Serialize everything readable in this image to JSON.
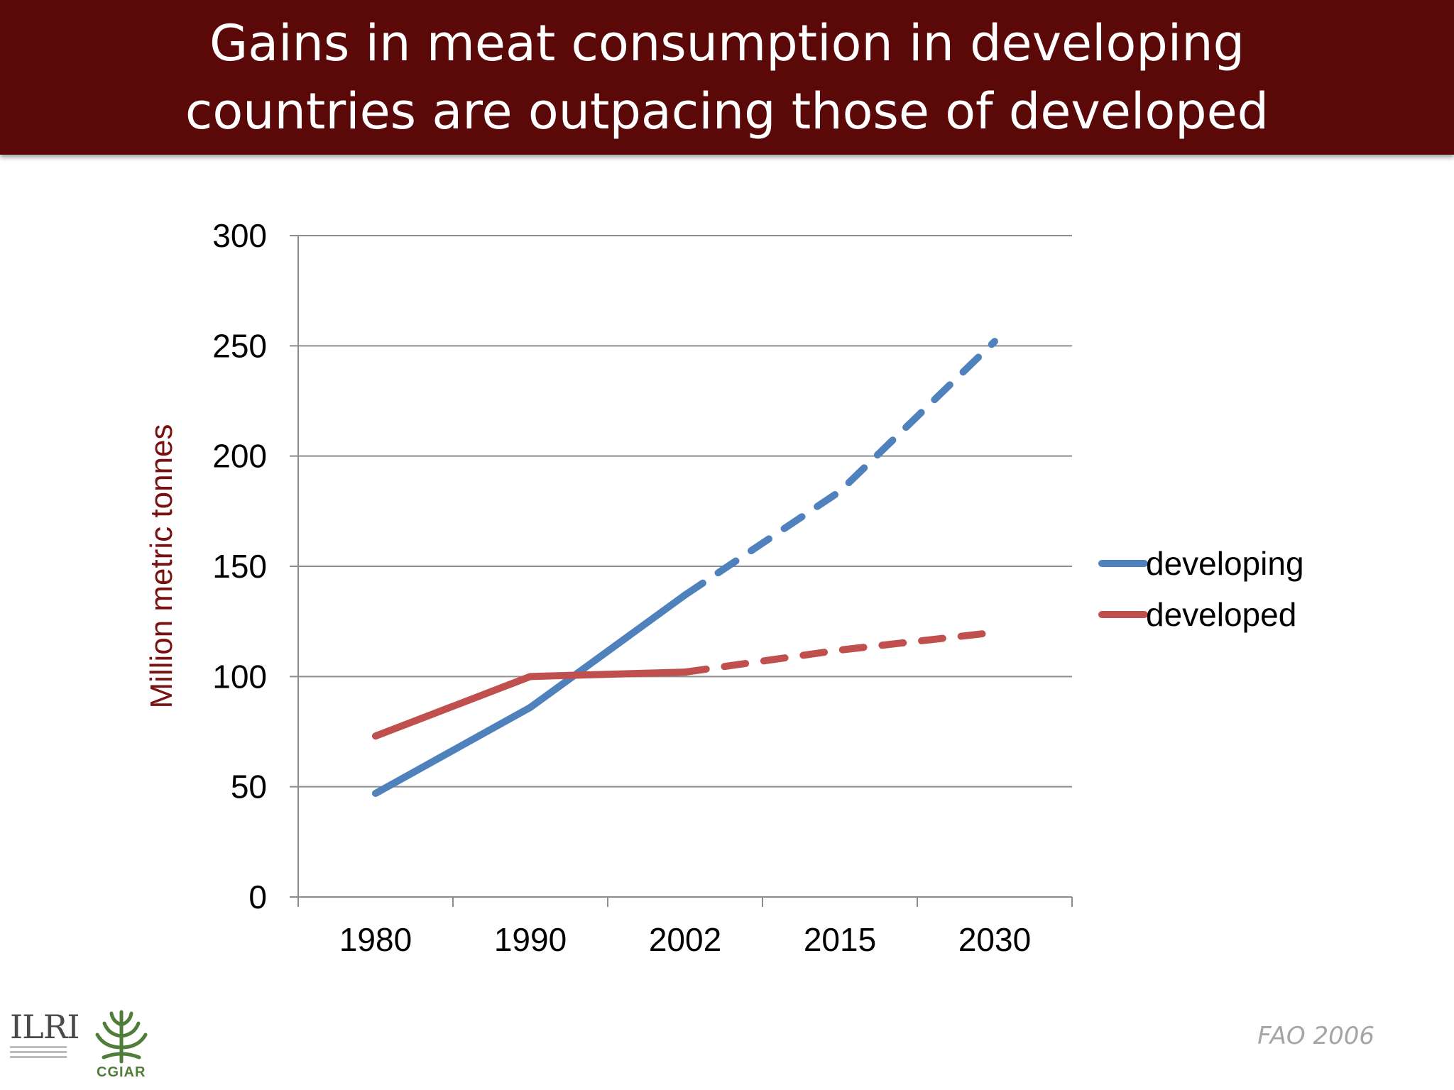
{
  "slide": {
    "title_lines": [
      "Gains in meat consumption in developing",
      "countries are outpacing those of developed"
    ],
    "source": "FAO 2006",
    "logos": {
      "ilri": "ILRI",
      "cgiar": "CGIAR"
    }
  },
  "colors": {
    "title_bg": "#5a0808",
    "developing": "#4f81bd",
    "developed": "#c0504d",
    "ylabel": "#7a1010"
  },
  "chart_data": {
    "type": "line",
    "title": "",
    "xlabel": "",
    "ylabel": "Million metric tonnes",
    "categories": [
      "1980",
      "1990",
      "2002",
      "2015",
      "2030"
    ],
    "ylim": [
      0,
      300
    ],
    "yticks": [
      0,
      50,
      100,
      150,
      200,
      250,
      300
    ],
    "grid": true,
    "legend_position": "right",
    "projection_from": "2002",
    "series": [
      {
        "name": "developing",
        "values": [
          47,
          86,
          137,
          184,
          252
        ]
      },
      {
        "name": "developed",
        "values": [
          73,
          100,
          102,
          112,
          120
        ]
      }
    ]
  }
}
